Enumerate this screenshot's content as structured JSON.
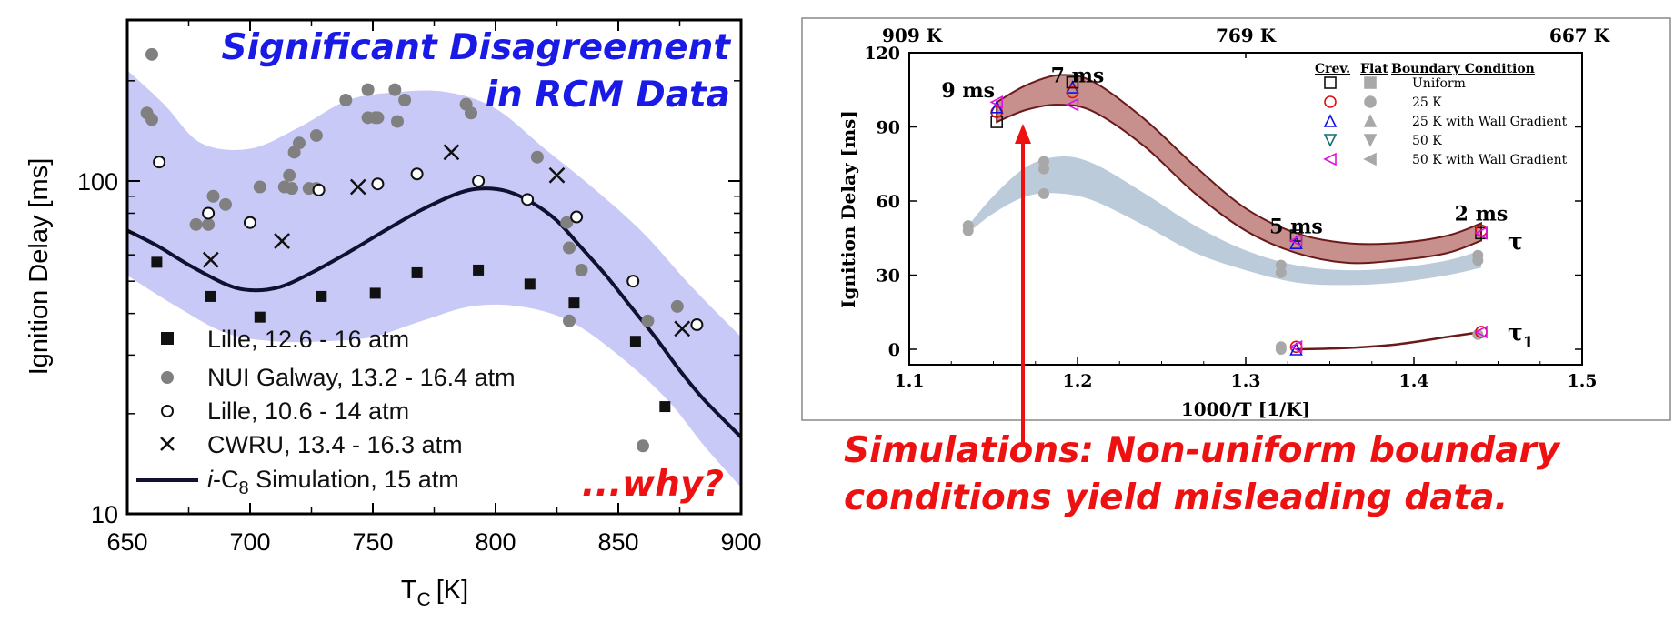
{
  "chart_data": [
    {
      "type": "scatter",
      "title": "Significant Disagreement in RCM Data",
      "title_lines": [
        "Significant Disagreement",
        "in RCM Data"
      ],
      "annotation": "...why?",
      "xlabel": "T",
      "xlabel_sub": "C",
      "xlabel_unit": "[K]",
      "ylabel": "Ignition Delay [ms]",
      "xlim": [
        650,
        900
      ],
      "ylim": [
        10,
        300
      ],
      "yscale": "log",
      "xticks": [
        650,
        700,
        750,
        800,
        850,
        900
      ],
      "yticks": [
        10,
        100
      ],
      "band_color": "#c9c9f8",
      "legend_position": "bottom-left",
      "series": [
        {
          "name": "Lille, 12.6 - 16 atm",
          "marker": "filled-square",
          "color": "#111111",
          "points": [
            [
              662,
              57
            ],
            [
              684,
              45
            ],
            [
              704,
              39
            ],
            [
              729,
              45
            ],
            [
              751,
              46
            ],
            [
              768,
              53
            ],
            [
              793,
              54
            ],
            [
              814,
              49
            ],
            [
              832,
              43
            ],
            [
              857,
              33
            ],
            [
              869,
              21
            ]
          ]
        },
        {
          "name": "NUI Galway, 13.2 - 16.4 atm",
          "marker": "filled-circle",
          "color": "#808080",
          "points": [
            [
              660,
              240
            ],
            [
              658,
              160
            ],
            [
              660,
              153
            ],
            [
              678,
              74
            ],
            [
              683,
              74
            ],
            [
              685,
              90
            ],
            [
              690,
              85
            ],
            [
              700,
              75
            ],
            [
              704,
              96
            ],
            [
              714,
              96
            ],
            [
              716,
              104
            ],
            [
              718,
              122
            ],
            [
              717,
              95
            ],
            [
              720,
              130
            ],
            [
              724,
              95
            ],
            [
              727,
              95
            ],
            [
              727,
              137
            ],
            [
              739,
              175
            ],
            [
              748,
              188
            ],
            [
              748,
              155
            ],
            [
              751,
              155
            ],
            [
              752,
              155
            ],
            [
              759,
              188
            ],
            [
              760,
              151
            ],
            [
              763,
              175
            ],
            [
              788,
              170
            ],
            [
              790,
              160
            ],
            [
              817,
              118
            ],
            [
              829,
              75
            ],
            [
              830,
              63
            ],
            [
              830,
              38
            ],
            [
              835,
              54
            ],
            [
              860,
              16
            ],
            [
              862,
              38
            ],
            [
              874,
              42
            ]
          ]
        },
        {
          "name": "Lille, 10.6 - 14 atm",
          "marker": "open-circle",
          "color": "#111111",
          "points": [
            [
              663,
              114
            ],
            [
              683,
              80
            ],
            [
              700,
              75
            ],
            [
              728,
              94
            ],
            [
              752,
              98
            ],
            [
              768,
              105
            ],
            [
              793,
              100
            ],
            [
              813,
              88
            ],
            [
              833,
              78
            ],
            [
              856,
              50
            ],
            [
              882,
              37
            ]
          ]
        },
        {
          "name": "CWRU, 13.4 - 16.3 atm",
          "marker": "cross",
          "color": "#111111",
          "points": [
            [
              684,
              58
            ],
            [
              713,
              66
            ],
            [
              744,
              96
            ],
            [
              782,
              122
            ],
            [
              825,
              104
            ],
            [
              876,
              36
            ]
          ]
        },
        {
          "name": "i-C8 Simulation, 15 atm",
          "name_prefix": "i",
          "name_main": "-C",
          "name_sub": "8",
          "name_suffix": " Simulation, 15 atm",
          "marker": "line",
          "color": "#101030",
          "points": [
            [
              650,
              71
            ],
            [
              662,
              64
            ],
            [
              675,
              56
            ],
            [
              690,
              49
            ],
            [
              700,
              47
            ],
            [
              712,
              48
            ],
            [
              725,
              53
            ],
            [
              740,
              61
            ],
            [
              755,
              71
            ],
            [
              770,
              82
            ],
            [
              785,
              92
            ],
            [
              795,
              95
            ],
            [
              805,
              93
            ],
            [
              815,
              86
            ],
            [
              825,
              76
            ],
            [
              835,
              63
            ],
            [
              845,
              52
            ],
            [
              855,
              42
            ],
            [
              865,
              34
            ],
            [
              875,
              27
            ],
            [
              885,
              22
            ],
            [
              900,
              17
            ]
          ]
        }
      ],
      "band": {
        "upper": [
          [
            650,
            215
          ],
          [
            665,
            170
          ],
          [
            680,
            130
          ],
          [
            700,
            125
          ],
          [
            720,
            145
          ],
          [
            740,
            175
          ],
          [
            760,
            185
          ],
          [
            780,
            185
          ],
          [
            800,
            165
          ],
          [
            820,
            125
          ],
          [
            840,
            95
          ],
          [
            860,
            70
          ],
          [
            880,
            48
          ],
          [
            900,
            34
          ]
        ],
        "lower": [
          [
            650,
            52
          ],
          [
            670,
            42
          ],
          [
            690,
            35
          ],
          [
            710,
            33
          ],
          [
            730,
            33
          ],
          [
            750,
            34
          ],
          [
            770,
            38
          ],
          [
            790,
            42
          ],
          [
            810,
            42
          ],
          [
            830,
            38
          ],
          [
            850,
            30
          ],
          [
            870,
            22
          ],
          [
            885,
            16
          ],
          [
            900,
            12
          ]
        ]
      }
    },
    {
      "type": "scatter",
      "xlabel": "1000/T [1/K]",
      "ylabel": "Ignition Delay [ms]",
      "xlim": [
        1.1,
        1.5
      ],
      "ylim": [
        -5,
        120
      ],
      "xticks": [
        1.1,
        1.2,
        1.3,
        1.4,
        1.5
      ],
      "yticks": [
        0,
        30,
        60,
        90,
        120
      ],
      "top_axis_labels": [
        "909 K",
        "769 K",
        "667 K"
      ],
      "top_axis_values": [
        1.1,
        1.3,
        1.5
      ],
      "legend_position": "top-right",
      "legend_header": [
        "Crev.",
        "Flat",
        "Boundary Condition"
      ],
      "legend": [
        {
          "name": "Uniform",
          "crev_marker": "open-square",
          "flat_marker": "filled-square",
          "color": "#111111"
        },
        {
          "name": "25 K",
          "crev_marker": "open-circle",
          "flat_marker": "filled-circle",
          "color": "#e01010"
        },
        {
          "name": "25 K with Wall Gradient",
          "crev_marker": "open-triangle-up",
          "flat_marker": "filled-triangle-up",
          "color": "#1010e0"
        },
        {
          "name": "50 K",
          "crev_marker": "open-triangle-down",
          "flat_marker": "filled-triangle-down",
          "color": "#107070"
        },
        {
          "name": "50 K with Wall Gradient",
          "crev_marker": "open-triangle-left",
          "flat_marker": "filled-triangle-left",
          "color": "#e010e0"
        }
      ],
      "annotations": [
        {
          "text": "9 ms",
          "x": 1.135,
          "y": 102
        },
        {
          "text": "7 ms",
          "x": 1.2,
          "y": 108
        },
        {
          "text": "5 ms",
          "x": 1.33,
          "y": 47
        },
        {
          "text": "2 ms",
          "x": 1.44,
          "y": 52
        }
      ],
      "tau_label": "τ",
      "tau1_label": "τ",
      "tau1_sub": "1",
      "crevice_band_color": "#c8908c",
      "flat_band_color": "#b8c8d8",
      "crevice_points": [
        {
          "x": 1.152,
          "y": 92,
          "set": "Uniform"
        },
        {
          "x": 1.152,
          "y": 96,
          "set": "25 K"
        },
        {
          "x": 1.152,
          "y": 98,
          "set": "25 K with Wall Gradient"
        },
        {
          "x": 1.152,
          "y": 100,
          "set": "50 K with Wall Gradient"
        },
        {
          "x": 1.197,
          "y": 106,
          "set": "25 K with Wall Gradient"
        },
        {
          "x": 1.197,
          "y": 104,
          "set": "25 K"
        },
        {
          "x": 1.197,
          "y": 99,
          "set": "50 K with Wall Gradient"
        },
        {
          "x": 1.197,
          "y": 108,
          "set": "Uniform"
        },
        {
          "x": 1.33,
          "y": 46,
          "set": "Uniform"
        },
        {
          "x": 1.33,
          "y": 43,
          "set": "25 K with Wall Gradient"
        },
        {
          "x": 1.33,
          "y": 44,
          "set": "50 K with Wall Gradient"
        },
        {
          "x": 1.44,
          "y": 47,
          "set": "Uniform"
        },
        {
          "x": 1.44,
          "y": 48,
          "set": "25 K"
        },
        {
          "x": 1.44,
          "y": 47,
          "set": "50 K with Wall Gradient"
        },
        {
          "x": 1.33,
          "y": 1,
          "set": "25 K"
        },
        {
          "x": 1.33,
          "y": 0,
          "set": "25 K with Wall Gradient"
        },
        {
          "x": 1.33,
          "y": 1,
          "set": "50 K with Wall Gradient"
        },
        {
          "x": 1.44,
          "y": 7,
          "set": "25 K"
        },
        {
          "x": 1.44,
          "y": 7,
          "set": "50 K with Wall Gradient"
        }
      ],
      "flat_points": [
        {
          "x": 1.135,
          "y": 48
        },
        {
          "x": 1.135,
          "y": 50
        },
        {
          "x": 1.18,
          "y": 63
        },
        {
          "x": 1.18,
          "y": 73
        },
        {
          "x": 1.18,
          "y": 76
        },
        {
          "x": 1.321,
          "y": 31
        },
        {
          "x": 1.321,
          "y": 34
        },
        {
          "x": 1.321,
          "y": 0
        },
        {
          "x": 1.321,
          "y": 1
        },
        {
          "x": 1.438,
          "y": 36
        },
        {
          "x": 1.438,
          "y": 38
        },
        {
          "x": 1.438,
          "y": 6
        }
      ],
      "crevice_band": {
        "upper": [
          [
            1.152,
            100
          ],
          [
            1.17,
            107
          ],
          [
            1.19,
            111
          ],
          [
            1.21,
            108
          ],
          [
            1.24,
            93
          ],
          [
            1.27,
            74
          ],
          [
            1.3,
            57
          ],
          [
            1.33,
            47
          ],
          [
            1.36,
            43
          ],
          [
            1.39,
            43
          ],
          [
            1.42,
            46
          ],
          [
            1.44,
            51
          ]
        ],
        "lower": [
          [
            1.152,
            92
          ],
          [
            1.17,
            97
          ],
          [
            1.19,
            99
          ],
          [
            1.21,
            96
          ],
          [
            1.24,
            82
          ],
          [
            1.27,
            63
          ],
          [
            1.3,
            48
          ],
          [
            1.33,
            39
          ],
          [
            1.36,
            35
          ],
          [
            1.39,
            36
          ],
          [
            1.42,
            39
          ],
          [
            1.44,
            44
          ]
        ]
      },
      "flat_band": {
        "upper": [
          [
            1.135,
            50
          ],
          [
            1.15,
            62
          ],
          [
            1.17,
            74
          ],
          [
            1.19,
            78
          ],
          [
            1.21,
            75
          ],
          [
            1.24,
            63
          ],
          [
            1.27,
            50
          ],
          [
            1.3,
            40
          ],
          [
            1.33,
            34
          ],
          [
            1.36,
            32
          ],
          [
            1.39,
            33
          ],
          [
            1.42,
            36
          ],
          [
            1.44,
            40
          ]
        ],
        "lower": [
          [
            1.135,
            47
          ],
          [
            1.15,
            55
          ],
          [
            1.17,
            62
          ],
          [
            1.19,
            63
          ],
          [
            1.21,
            60
          ],
          [
            1.24,
            50
          ],
          [
            1.27,
            39
          ],
          [
            1.3,
            32
          ],
          [
            1.33,
            27
          ],
          [
            1.36,
            26
          ],
          [
            1.39,
            27
          ],
          [
            1.42,
            30
          ],
          [
            1.44,
            33
          ]
        ]
      },
      "tau1_curve": [
        [
          1.33,
          0
        ],
        [
          1.36,
          0.5
        ],
        [
          1.39,
          2
        ],
        [
          1.42,
          5
        ],
        [
          1.44,
          7
        ]
      ]
    }
  ],
  "callout": {
    "lines": [
      "Simulations: Non-uniform boundary",
      "conditions yield misleading data."
    ],
    "color": "#ee1111"
  }
}
